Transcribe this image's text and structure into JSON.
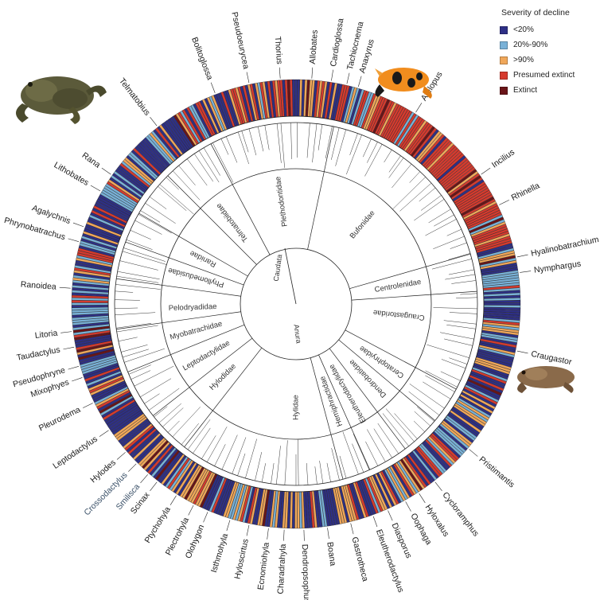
{
  "legend": {
    "title": "Severity of decline",
    "items": [
      {
        "label": "<20%",
        "color": "#2e2f86"
      },
      {
        "label": "20%-90%",
        "color": "#79b1d7"
      },
      {
        "label": ">90%",
        "color": "#f0a75a"
      },
      {
        "label": "Presumed extinct",
        "color": "#d63a2e"
      },
      {
        "label": "Extinct",
        "color": "#6a1418"
      }
    ]
  },
  "clades": {
    "caudata": "Caudata",
    "anura": "Anura"
  },
  "families": [
    {
      "name": "Plethodontidae",
      "angle": -8
    },
    {
      "name": "Telmatobiidae",
      "angle": -38
    },
    {
      "name": "Bufonidae",
      "angle": 40
    },
    {
      "name": "Centrolenidae",
      "angle": 80
    },
    {
      "name": "Craugastoridae",
      "angle": 96
    },
    {
      "name": "Ceratophryidae",
      "angle": 124
    },
    {
      "name": "Dendrobatidae",
      "angle": 136
    },
    {
      "name": "Eleutherodactylidae",
      "angle": 150
    },
    {
      "name": "Hemiphractidae",
      "angle": 160
    },
    {
      "name": "Hylidae",
      "angle": 180
    },
    {
      "name": "Hylodidae",
      "angle": 225
    },
    {
      "name": "Leptodactylidae",
      "angle": 240
    },
    {
      "name": "Myobatrachidae",
      "angle": 255
    },
    {
      "name": "Pelodryadidae",
      "angle": 268
    },
    {
      "name": "Phyllomedusidae",
      "angle": 285
    },
    {
      "name": "Ranidae",
      "angle": 296
    }
  ],
  "genera": [
    {
      "name": "Bolitoglossa",
      "angle": -21
    },
    {
      "name": "Pseudoeurycea",
      "angle": -12
    },
    {
      "name": "Thorius",
      "angle": -4
    },
    {
      "name": "Allobates",
      "angle": 4
    },
    {
      "name": "Cardioglossa",
      "angle": 9
    },
    {
      "name": "Tachiocnema",
      "angle": 13
    },
    {
      "name": "Anaxyrus",
      "angle": 16
    },
    {
      "name": "Atelopus",
      "angle": 32
    },
    {
      "name": "Incilius",
      "angle": 55
    },
    {
      "name": "Rhinella",
      "angle": 64
    },
    {
      "name": "Hyalinobatrachium",
      "angle": 78
    },
    {
      "name": "Nymphargus",
      "angle": 82
    },
    {
      "name": "Craugastor",
      "angle": 102
    },
    {
      "name": "Pristimantis",
      "angle": 130
    },
    {
      "name": "Cycloramphus",
      "angle": 142
    },
    {
      "name": "Hyloxalus",
      "angle": 147
    },
    {
      "name": "Oophaga",
      "angle": 151
    },
    {
      "name": "Diasporus",
      "angle": 156
    },
    {
      "name": "Eleutherodactylus",
      "angle": 160
    },
    {
      "name": "Gastrotheca",
      "angle": 166
    },
    {
      "name": "Boana",
      "angle": 172
    },
    {
      "name": "Dendropsophus",
      "angle": 178
    },
    {
      "name": "Charadrahyla",
      "angle": 183
    },
    {
      "name": "Ecnomiohyla",
      "angle": 187
    },
    {
      "name": "Hyloscirtus",
      "angle": 192
    },
    {
      "name": "Isthmohyla",
      "angle": 197
    },
    {
      "name": "Olohygon",
      "angle": 203
    },
    {
      "name": "Plectrohyla",
      "angle": 207
    },
    {
      "name": "Ptychohyla",
      "angle": 212
    },
    {
      "name": "Scinax",
      "angle": 218
    },
    {
      "name": "Smilisca",
      "angle": 221
    },
    {
      "name": "Crossodactylus",
      "angle": 225
    },
    {
      "name": "Hylodes",
      "angle": 229
    },
    {
      "name": "Leptodactylus",
      "angle": 236
    },
    {
      "name": "Pleurodema",
      "angle": 244
    },
    {
      "name": "Mixophyes",
      "angle": 251
    },
    {
      "name": "Pseudophryne",
      "angle": 254
    },
    {
      "name": "Taudactylus",
      "angle": 259
    },
    {
      "name": "Litoria",
      "angle": 263
    },
    {
      "name": "Ranoidea",
      "angle": 274
    },
    {
      "name": "Phrynobatrachus",
      "angle": 286
    },
    {
      "name": "Agalychnis",
      "angle": 290
    },
    {
      "name": "Lithobates",
      "angle": 300
    },
    {
      "name": "Rana",
      "angle": 305
    },
    {
      "name": "Telmatobius",
      "angle": 322
    }
  ],
  "tinted_genera": [
    "Crossodactylus",
    "Smilisca"
  ],
  "photos": {
    "frog_topleft": "frog-photo",
    "frog_topright": "harlequin-toad-photo",
    "frog_right": "rain-frog-photo"
  }
}
